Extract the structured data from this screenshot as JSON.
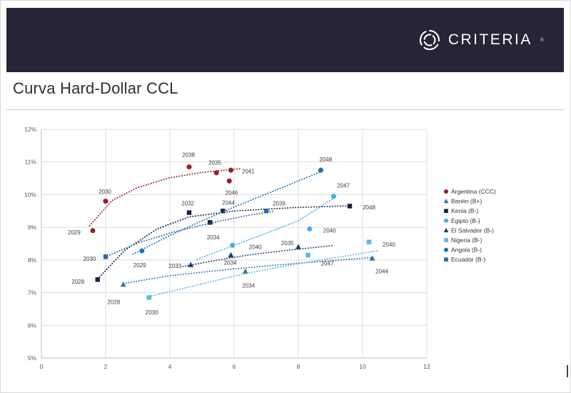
{
  "header": {
    "logo_text": "CRITERIA",
    "logo_mark": "®"
  },
  "page": {
    "title": "Curva Hard-Dollar CCL"
  },
  "chart_data": {
    "type": "scatter",
    "title": "Curva Hard-Dollar CCL",
    "grid": true,
    "legend_position": "right",
    "x_axis": {
      "min": 0,
      "max": 12,
      "tick_labels": [
        "0",
        "2",
        "4",
        "6",
        "8",
        "10",
        "12"
      ]
    },
    "y_axis": {
      "min": 5,
      "max": 12,
      "ticks": [
        [
          12,
          "12%"
        ],
        [
          11,
          "11%"
        ],
        [
          10,
          "10%"
        ],
        [
          9,
          "9%"
        ],
        [
          8,
          "8%"
        ],
        [
          7,
          "7%"
        ],
        [
          6,
          "6%"
        ],
        [
          5,
          "5%"
        ]
      ]
    },
    "series": [
      {
        "name": "Argentina (CCC)",
        "marker": "circle",
        "color": "#9e1b24",
        "points": [
          {
            "year": "2029",
            "x": 1.6,
            "y": 8.9,
            "lx": 1.02,
            "ly": 8.85
          },
          {
            "year": "2030",
            "x": 2.0,
            "y": 9.8,
            "lx": 1.98,
            "ly": 10.1
          },
          {
            "year": "2038",
            "x": 4.6,
            "y": 10.85,
            "lx": 4.58,
            "ly": 11.22
          },
          {
            "year": "2035",
            "x": 5.45,
            "y": 10.67,
            "lx": 5.4,
            "ly": 10.98
          },
          {
            "year": "2041",
            "x": 5.9,
            "y": 10.75,
            "lx": 6.44,
            "ly": 10.72
          },
          {
            "year": "2046",
            "x": 5.85,
            "y": 10.42,
            "lx": 5.92,
            "ly": 10.06
          }
        ],
        "trend": [
          [
            1.5,
            9.05
          ],
          [
            2.2,
            9.82
          ],
          [
            3.0,
            10.22
          ],
          [
            4.0,
            10.52
          ],
          [
            5.0,
            10.68
          ],
          [
            6.2,
            10.8
          ]
        ]
      },
      {
        "name": "Baréin (B+)",
        "marker": "triangle",
        "color": "#2f74b5",
        "points": [
          {
            "year": "2028",
            "x": 2.55,
            "y": 7.25,
            "lx": 2.25,
            "ly": 6.72
          },
          {
            "year": "2034",
            "x": 6.35,
            "y": 7.65,
            "lx": 6.45,
            "ly": 7.22
          },
          {
            "year": "2044",
            "x": 10.3,
            "y": 8.05,
            "lx": 10.6,
            "ly": 7.66
          }
        ],
        "trend": [
          [
            2.55,
            7.28
          ],
          [
            4.0,
            7.52
          ],
          [
            5.5,
            7.68
          ],
          [
            7.0,
            7.82
          ],
          [
            8.5,
            7.94
          ],
          [
            10.35,
            8.08
          ]
        ]
      },
      {
        "name": "Kenia (B-)",
        "marker": "square",
        "color": "#16223e",
        "points": [
          {
            "year": "2028",
            "x": 1.75,
            "y": 7.4,
            "lx": 1.14,
            "ly": 7.34
          },
          {
            "year": "2032",
            "x": 4.6,
            "y": 9.45,
            "lx": 4.56,
            "ly": 9.74
          },
          {
            "year": "2044",
            "x": 5.65,
            "y": 9.5,
            "lx": 5.82,
            "ly": 9.76
          },
          {
            "year": "2034",
            "x": 5.25,
            "y": 9.15,
            "lx": 5.35,
            "ly": 8.7
          },
          {
            "year": "2048",
            "x": 9.6,
            "y": 9.65,
            "lx": 10.2,
            "ly": 9.62
          }
        ],
        "trend": [
          [
            1.75,
            7.42
          ],
          [
            2.6,
            8.3
          ],
          [
            3.6,
            8.95
          ],
          [
            4.6,
            9.32
          ],
          [
            6.0,
            9.5
          ],
          [
            7.8,
            9.6
          ],
          [
            9.55,
            9.66
          ]
        ]
      },
      {
        "name": "Egipto (B-)",
        "marker": "circle",
        "color": "#3fafe4",
        "points": [
          {
            "year": "2040",
            "x": 5.95,
            "y": 8.45,
            "lx": 6.66,
            "ly": 8.4
          },
          {
            "year": "2040",
            "x": 8.35,
            "y": 8.95,
            "lx": 8.97,
            "ly": 8.9
          },
          {
            "year": "2047",
            "x": 9.1,
            "y": 9.95,
            "lx": 9.4,
            "ly": 10.28
          }
        ],
        "trend": [
          [
            4.85,
            8.02
          ],
          [
            6.0,
            8.45
          ],
          [
            7.0,
            8.82
          ],
          [
            8.0,
            9.2
          ],
          [
            9.15,
            9.92
          ]
        ]
      },
      {
        "name": "El Salvador (B-)",
        "marker": "triangle",
        "color": "#1b3f77",
        "points": [
          {
            "year": "2033",
            "x": 4.65,
            "y": 7.85,
            "lx": 4.16,
            "ly": 7.82
          },
          {
            "year": "2034",
            "x": 5.9,
            "y": 8.15,
            "lx": 5.88,
            "ly": 7.92
          },
          {
            "year": "2035",
            "x": 8.0,
            "y": 8.4,
            "lx": 7.66,
            "ly": 8.52
          }
        ],
        "trend": [
          [
            4.4,
            7.8
          ],
          [
            5.5,
            8.0
          ],
          [
            6.5,
            8.16
          ],
          [
            7.5,
            8.28
          ],
          [
            9.05,
            8.44
          ]
        ]
      },
      {
        "name": "Nigeria (B-)",
        "marker": "square",
        "color": "#53b7e8",
        "points": [
          {
            "year": "2030",
            "x": 3.35,
            "y": 6.85,
            "lx": 3.44,
            "ly": 6.4
          },
          {
            "year": "2047",
            "x": 8.3,
            "y": 8.15,
            "lx": 8.9,
            "ly": 7.9
          },
          {
            "year": "2040",
            "x": 10.2,
            "y": 8.55,
            "lx": 10.82,
            "ly": 8.48
          }
        ],
        "trend": [
          [
            3.35,
            6.88
          ],
          [
            4.8,
            7.22
          ],
          [
            6.2,
            7.55
          ],
          [
            7.6,
            7.82
          ],
          [
            9.0,
            8.05
          ],
          [
            10.45,
            8.28
          ]
        ]
      },
      {
        "name": "Angola (B-)",
        "marker": "circle",
        "color": "#1d6fc1",
        "points": [
          {
            "year": "2029",
            "x": 3.13,
            "y": 8.28,
            "lx": 3.06,
            "ly": 7.84
          },
          {
            "year": "2048",
            "x": 8.7,
            "y": 10.75,
            "lx": 8.85,
            "ly": 11.08
          }
        ],
        "trend": [
          [
            2.85,
            8.18
          ],
          [
            4.0,
            8.75
          ],
          [
            5.0,
            9.2
          ],
          [
            6.0,
            9.62
          ],
          [
            7.0,
            10.02
          ],
          [
            8.0,
            10.42
          ],
          [
            8.75,
            10.72
          ]
        ]
      },
      {
        "name": "Ecuador (B-)",
        "marker": "square",
        "color": "#2c66ad",
        "points": [
          {
            "year": "2030",
            "x": 2.0,
            "y": 8.1,
            "lx": 1.5,
            "ly": 8.04
          },
          {
            "year": "2039",
            "x": 7.0,
            "y": 9.5,
            "lx": 7.4,
            "ly": 9.74
          }
        ],
        "trend": [
          [
            2.05,
            8.12
          ],
          [
            3.0,
            8.52
          ],
          [
            4.2,
            8.88
          ],
          [
            5.5,
            9.18
          ],
          [
            6.5,
            9.38
          ],
          [
            7.25,
            9.5
          ]
        ]
      }
    ]
  }
}
